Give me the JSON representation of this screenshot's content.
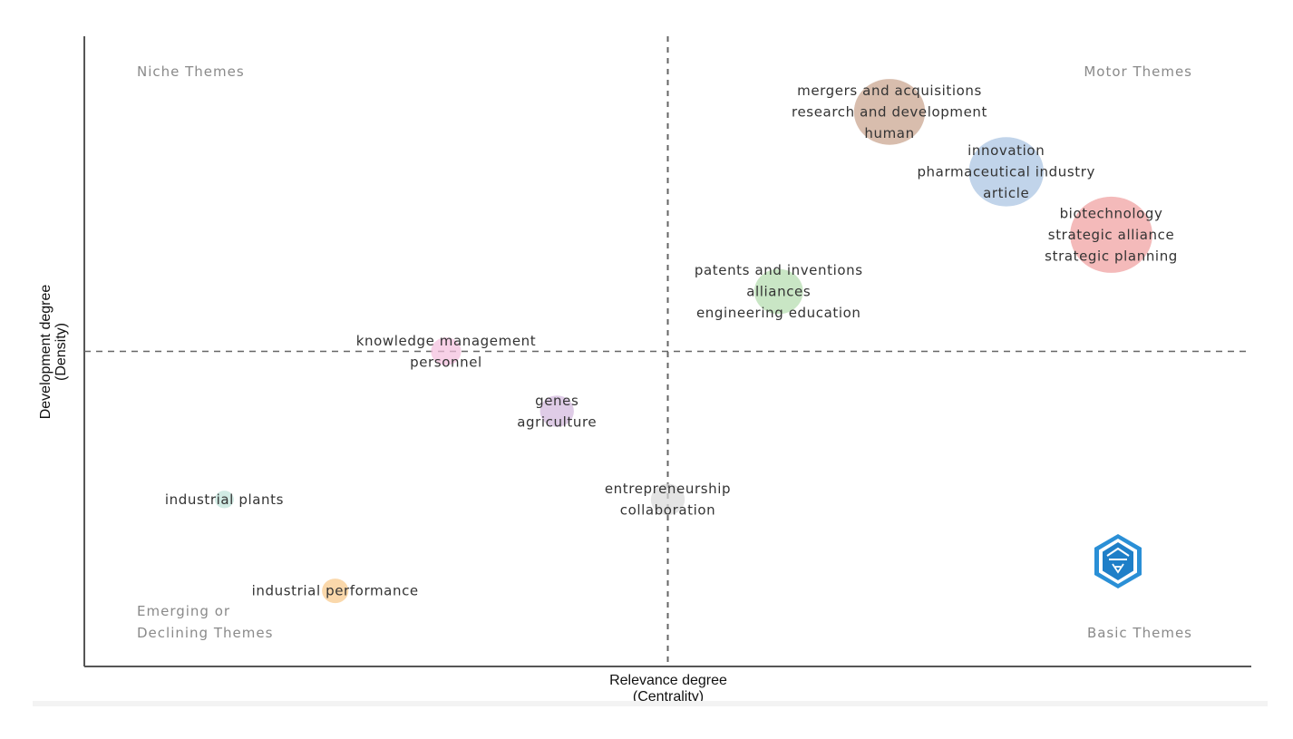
{
  "chart_data": {
    "type": "scatter",
    "xlabel": "Relevance degree",
    "xlabel_sub": "(Centrality)",
    "ylabel": "Development degree",
    "ylabel_sub": "(Density)",
    "quadrants": {
      "top_left": "Niche Themes",
      "top_right": "Motor Themes",
      "bottom_left_1": "Emerging or",
      "bottom_left_2": "Declining Themes",
      "bottom_right": "Basic Themes"
    },
    "xlim": [
      0,
      1
    ],
    "ylim": [
      0,
      1
    ],
    "x_divider": 0.5,
    "y_divider": 0.5,
    "grid": false,
    "clusters": [
      {
        "labels": [
          "mergers and acquisitions",
          "research and development",
          "human"
        ],
        "x": 0.69,
        "y": 0.88,
        "size": 0.85,
        "color": "#c9a48d"
      },
      {
        "labels": [
          "innovation",
          "pharmaceutical industry",
          "article"
        ],
        "x": 0.79,
        "y": 0.785,
        "size": 0.9,
        "color": "#a9c4e2"
      },
      {
        "labels": [
          "biotechnology",
          "strategic alliance",
          "strategic planning"
        ],
        "x": 0.88,
        "y": 0.685,
        "size": 1.0,
        "color": "#f0a0a0"
      },
      {
        "labels": [
          "patents and inventions",
          "alliances",
          "engineering education"
        ],
        "x": 0.595,
        "y": 0.595,
        "size": 0.55,
        "color": "#b4dcae"
      },
      {
        "labels": [
          "knowledge management",
          "personnel"
        ],
        "x": 0.31,
        "y": 0.5,
        "size": 0.3,
        "color": "#f4bfde"
      },
      {
        "labels": [
          "genes",
          "agriculture"
        ],
        "x": 0.405,
        "y": 0.405,
        "size": 0.35,
        "color": "#d2b8de"
      },
      {
        "labels": [
          "entrepreneurship",
          "collaboration"
        ],
        "x": 0.5,
        "y": 0.265,
        "size": 0.35,
        "color": "#d9d9d9"
      },
      {
        "labels": [
          "industrial plants"
        ],
        "x": 0.12,
        "y": 0.265,
        "size": 0.15,
        "color": "#bfe3da"
      },
      {
        "labels": [
          "industrial performance"
        ],
        "x": 0.215,
        "y": 0.12,
        "size": 0.25,
        "color": "#f8c98a"
      }
    ]
  },
  "logo": {
    "name": "bibliometrix-logo-icon",
    "color": "#2a8fd6"
  }
}
